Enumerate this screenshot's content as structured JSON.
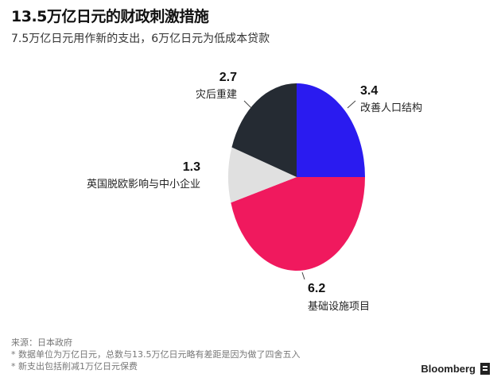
{
  "header": {
    "title": "13.5万亿日元的财政刺激措施",
    "subtitle": "7.5万亿日元用作新的支出，6万亿日元为低成本贷款"
  },
  "chart_data": {
    "type": "pie",
    "title": "13.5万亿日元的财政刺激措施",
    "subtitle": "7.5万亿日元用作新的支出，6万亿日元为低成本贷款",
    "slices": [
      {
        "label": "改善人口结构",
        "value": 3.4,
        "value_label": "3.4",
        "color": "#2a1bf0"
      },
      {
        "label": "基础设施项目",
        "value": 6.2,
        "value_label": "6.2",
        "color": "#f0195e"
      },
      {
        "label": "英国脱欧影响与中小企业",
        "value": 1.3,
        "value_label": "1.3",
        "color": "#e0e0e0"
      },
      {
        "label": "灾后重建",
        "value": 2.7,
        "value_label": "2.7",
        "color": "#252b33"
      }
    ],
    "start_angle_deg": 0,
    "direction": "clockwise",
    "legend": "none"
  },
  "footer": {
    "source": "来源：日本政府",
    "note1": "* 数据单位为万亿日元，总数与13.5万亿日元略有差距是因为做了四舍五入",
    "note2": "* 新支出包括削减1万亿日元保费"
  },
  "brand": {
    "name": "Bloomberg",
    "icon": "bloomberg-terminal-icon"
  }
}
